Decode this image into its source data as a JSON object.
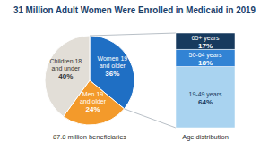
{
  "chart_data": [
    {
      "type": "pie",
      "title": "31 Million Adult Women Were Enrolled in Medicaid in 2019",
      "categories": [
        "Women 19 and older",
        "Men 19 and older",
        "Children 18 and under"
      ],
      "values": [
        36,
        24,
        40
      ],
      "value_labels": [
        "36%",
        "24%",
        "40%"
      ],
      "colors": [
        "#1f6fc4",
        "#f39a2b",
        "#e2ded7"
      ],
      "data_labels": true,
      "xlabel": "87.8 million beneficiaries"
    },
    {
      "type": "bar",
      "stacked": true,
      "tick_labels": false,
      "data_labels": true,
      "categories": [
        null
      ],
      "xlabel": "Age distribution",
      "series": [
        {
          "name": "19-49 years",
          "values": [
            64
          ],
          "value_labels": [
            "64%"
          ],
          "color": "#a9d3f0"
        },
        {
          "name": "50-64 years",
          "values": [
            18
          ],
          "value_labels": [
            "18%"
          ],
          "color": "#3283d4"
        },
        {
          "name": "65+ years",
          "values": [
            17
          ],
          "value_labels": [
            "17%"
          ],
          "color": "#173a5e"
        }
      ]
    }
  ]
}
